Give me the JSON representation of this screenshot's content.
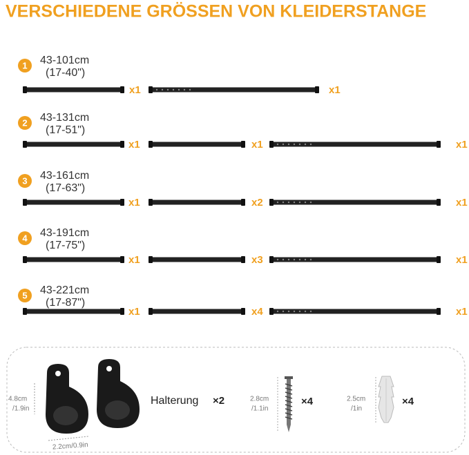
{
  "title": "VERSCHIEDENE GRÖSSEN VON KLEIDERSTANGE",
  "sizes": [
    {
      "number": "1",
      "length": "43-101cm",
      "inches": "(17-40\")",
      "parts": [
        "x1",
        "x1"
      ]
    },
    {
      "number": "2",
      "length": "43-131cm",
      "inches": "(17-51\")",
      "parts": [
        "x1",
        "x1",
        "x1"
      ]
    },
    {
      "number": "3",
      "length": "43-161cm",
      "inches": "(17-63\")",
      "parts": [
        "x1",
        "x2",
        "x1"
      ]
    },
    {
      "number": "4",
      "length": "43-191cm",
      "inches": "(17-75\")",
      "parts": [
        "x1",
        "x3",
        "x1"
      ]
    },
    {
      "number": "5",
      "length": "43-221cm",
      "inches": "(17-87\")",
      "parts": [
        "x1",
        "x4",
        "x1"
      ]
    }
  ],
  "hardware": {
    "bracket": {
      "height_cm": "4.8cm",
      "height_in": "/1.9in",
      "width": "2.2cm/0.9in",
      "label": "Halterung",
      "quantity": "×2"
    },
    "screw": {
      "height_cm": "2.8cm",
      "height_in": "/1.1in",
      "quantity": "×4"
    },
    "anchor": {
      "height_cm": "2.5cm",
      "height_in": "/1in",
      "quantity": "×4"
    }
  }
}
